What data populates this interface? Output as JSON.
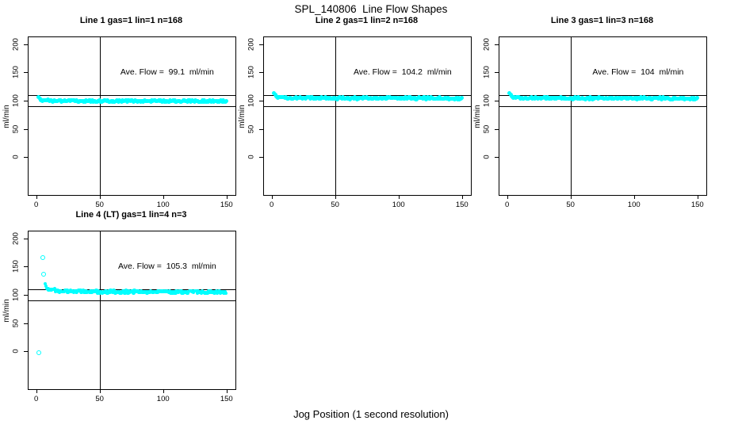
{
  "page_title": "SPL_140806  Line Flow Shapes",
  "x_axis_title": "Jog Position (1 second resolution)",
  "colors": {
    "points": "#00ffff",
    "axis": "#000000",
    "background": "#ffffff"
  },
  "chart_data": [
    {
      "type": "scatter",
      "title": "Line 1 gas=1 lin=1 n=168",
      "annotation": "Ave. Flow =  99.1  ml/min",
      "ave_flow_ml_min": 99.1,
      "ylabel": "ml/min",
      "x_ticks": [
        0,
        50,
        100,
        150
      ],
      "y_ticks": [
        0,
        50,
        100,
        150,
        200
      ],
      "xlim": [
        -6,
        157
      ],
      "ylim": [
        -67,
        212
      ],
      "ref_lines_h": [
        110,
        90
      ],
      "ref_lines_v": [
        50
      ],
      "marker_size": 5,
      "band_thickness": 2.5,
      "band": [
        [
          2,
          104
        ],
        [
          3,
          102.5
        ],
        [
          4,
          101.5
        ],
        [
          6,
          100.5
        ],
        [
          8,
          100
        ],
        [
          10,
          99.8
        ],
        [
          20,
          99.5
        ],
        [
          40,
          99.3
        ],
        [
          60,
          99.2
        ],
        [
          80,
          99.1
        ],
        [
          100,
          99
        ],
        [
          120,
          99
        ],
        [
          150,
          98.9
        ]
      ],
      "outliers": []
    },
    {
      "type": "scatter",
      "title": "Line 2 gas=1 lin=2 n=168",
      "annotation": "Ave. Flow =  104.2  ml/min",
      "ave_flow_ml_min": 104.2,
      "ylabel": "ml/min",
      "x_ticks": [
        0,
        50,
        100,
        150
      ],
      "y_ticks": [
        0,
        50,
        100,
        150,
        200
      ],
      "xlim": [
        -6,
        157
      ],
      "ylim": [
        -67,
        212
      ],
      "ref_lines_h": [
        110,
        90
      ],
      "ref_lines_v": [
        50
      ],
      "marker_size": 5,
      "band_thickness": 2.5,
      "band": [
        [
          2,
          112
        ],
        [
          3,
          109.5
        ],
        [
          4,
          107.5
        ],
        [
          6,
          106
        ],
        [
          8,
          105.3
        ],
        [
          10,
          105
        ],
        [
          20,
          104.6
        ],
        [
          40,
          104.4
        ],
        [
          60,
          104.3
        ],
        [
          80,
          104.2
        ],
        [
          100,
          104.1
        ],
        [
          120,
          104.1
        ],
        [
          150,
          104
        ]
      ],
      "outliers": []
    },
    {
      "type": "scatter",
      "title": "Line 3 gas=1 lin=3 n=168",
      "annotation": "Ave. Flow =  104  ml/min",
      "ave_flow_ml_min": 104,
      "ylabel": "ml/min",
      "x_ticks": [
        0,
        50,
        100,
        150
      ],
      "y_ticks": [
        0,
        50,
        100,
        150,
        200
      ],
      "xlim": [
        -6,
        157
      ],
      "ylim": [
        -67,
        212
      ],
      "ref_lines_h": [
        110,
        90
      ],
      "ref_lines_v": [
        50
      ],
      "marker_size": 5,
      "band_thickness": 2.5,
      "band": [
        [
          2,
          112
        ],
        [
          3,
          109
        ],
        [
          4,
          107
        ],
        [
          6,
          105.5
        ],
        [
          8,
          104.8
        ],
        [
          10,
          104.5
        ],
        [
          20,
          104.2
        ],
        [
          40,
          104.1
        ],
        [
          60,
          104
        ],
        [
          80,
          104
        ],
        [
          100,
          103.9
        ],
        [
          120,
          103.9
        ],
        [
          150,
          103.8
        ]
      ],
      "outliers": []
    },
    {
      "type": "scatter",
      "title": "Line 4 (LT) gas=1 lin=4 n=3",
      "annotation": "Ave. Flow =  105.3  ml/min",
      "ave_flow_ml_min": 105.3,
      "ylabel": "ml/min",
      "x_ticks": [
        0,
        50,
        100,
        150
      ],
      "y_ticks": [
        0,
        50,
        100,
        150,
        200
      ],
      "xlim": [
        -6,
        157
      ],
      "ylim": [
        -67,
        212
      ],
      "ref_lines_h": [
        110,
        90
      ],
      "ref_lines_v": [
        50
      ],
      "marker_size": 4.5,
      "band_thickness": 3.5,
      "band": [
        [
          7,
          117
        ],
        [
          8,
          113.5
        ],
        [
          10,
          110.5
        ],
        [
          12,
          108.8
        ],
        [
          15,
          107.6
        ],
        [
          20,
          106.6
        ],
        [
          25,
          106.2
        ],
        [
          30,
          105.9
        ],
        [
          40,
          105.6
        ],
        [
          50,
          105.4
        ],
        [
          60,
          105.3
        ],
        [
          70,
          105.1
        ],
        [
          80,
          105.3
        ],
        [
          90,
          104.9
        ],
        [
          100,
          105.1
        ],
        [
          110,
          104.8
        ],
        [
          120,
          105
        ],
        [
          130,
          104.7
        ],
        [
          140,
          104.9
        ],
        [
          150,
          104.6
        ]
      ],
      "outliers": [
        [
          2,
          -3
        ],
        [
          5,
          166
        ],
        [
          6,
          136
        ]
      ]
    }
  ]
}
